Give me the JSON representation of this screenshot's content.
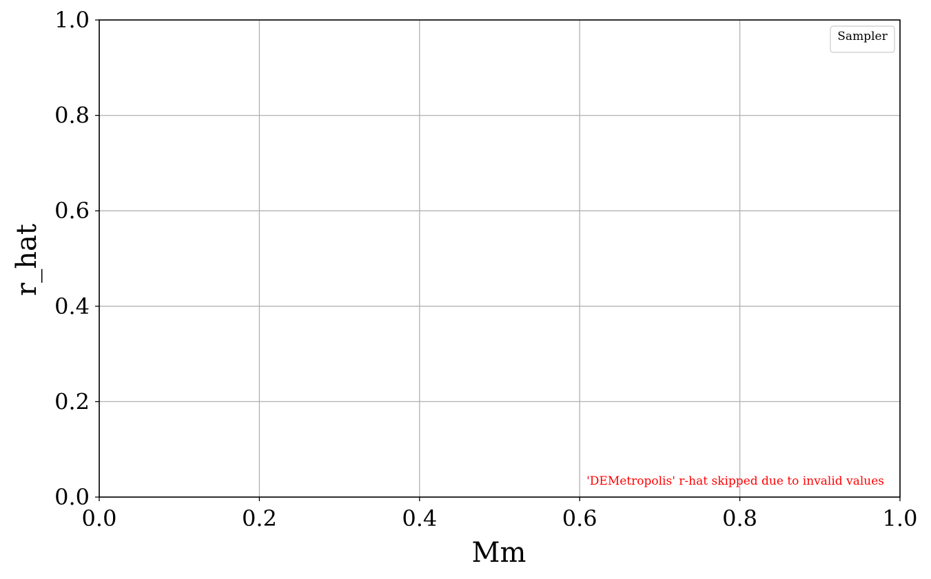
{
  "chart_data": {
    "type": "line",
    "title": "",
    "xlabel": "Mm",
    "ylabel": "r_hat",
    "xlim": [
      0.0,
      1.0
    ],
    "ylim": [
      0.0,
      1.0
    ],
    "x_ticks": [
      "0.0",
      "0.2",
      "0.4",
      "0.6",
      "0.8",
      "1.0"
    ],
    "y_ticks": [
      "0.0",
      "0.2",
      "0.4",
      "0.6",
      "0.8",
      "1.0"
    ],
    "x_tick_values": [
      0.0,
      0.2,
      0.4,
      0.6,
      0.8,
      1.0
    ],
    "y_tick_values": [
      0.0,
      0.2,
      0.4,
      0.6,
      0.8,
      1.0
    ],
    "grid": true,
    "legend": {
      "title": "Sampler",
      "placement": "top-right",
      "entries": []
    },
    "series": [],
    "annotation": {
      "text": "'DEMetropolis' r-hat skipped due to invalid values",
      "color": "#ff0000",
      "placement": "bottom-right"
    },
    "colors": {
      "grid": "#b0b0b0",
      "axes": "#000000",
      "legend_border": "#cccccc"
    }
  }
}
